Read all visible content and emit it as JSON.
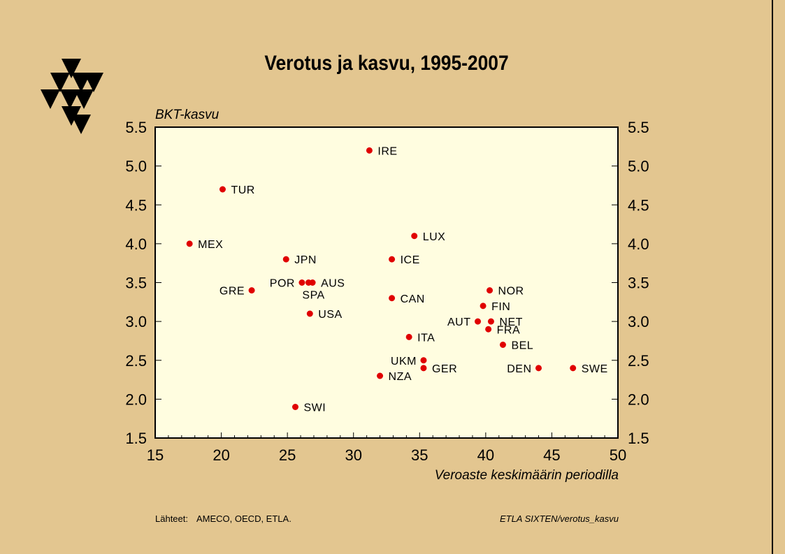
{
  "title": "Verotus ja kasvu, 1995-2007",
  "footer": {
    "sources_label": "Lähteet:",
    "sources": "AMECO, OECD, ETLA.",
    "reference": "ETLA  SIXTEN/verotus_kasvu"
  },
  "colors": {
    "background": "#e3c690",
    "plot_area": "#fffde0",
    "marker": "#e00000"
  },
  "chart_data": {
    "type": "scatter",
    "title": "Verotus ja kasvu, 1995-2007",
    "xlabel": "Veroaste keskimäärin periodilla",
    "ylabel": "BKT-kasvu",
    "xlim": [
      15,
      50
    ],
    "ylim": [
      1.5,
      5.5
    ],
    "x_ticks": [
      15,
      20,
      25,
      30,
      35,
      40,
      45,
      50
    ],
    "y_ticks": [
      1.5,
      2.0,
      2.5,
      3.0,
      3.5,
      4.0,
      4.5,
      5.0,
      5.5
    ],
    "grid": false,
    "points": [
      {
        "label": "IRE",
        "x": 31.2,
        "y": 5.2,
        "pos": "right"
      },
      {
        "label": "TUR",
        "x": 20.1,
        "y": 4.7,
        "pos": "right"
      },
      {
        "label": "MEX",
        "x": 17.6,
        "y": 4.0,
        "pos": "right"
      },
      {
        "label": "LUX",
        "x": 34.6,
        "y": 4.1,
        "pos": "right"
      },
      {
        "label": "JPN",
        "x": 24.9,
        "y": 3.8,
        "pos": "right"
      },
      {
        "label": "ICE",
        "x": 32.9,
        "y": 3.8,
        "pos": "right"
      },
      {
        "label": "POR",
        "x": 26.1,
        "y": 3.5,
        "pos": "left"
      },
      {
        "label": "SPA",
        "x": 26.6,
        "y": 3.5,
        "pos": "below"
      },
      {
        "label": "AUS",
        "x": 26.9,
        "y": 3.5,
        "pos": "right"
      },
      {
        "label": "GRE",
        "x": 22.3,
        "y": 3.4,
        "pos": "left"
      },
      {
        "label": "NOR",
        "x": 40.3,
        "y": 3.4,
        "pos": "right"
      },
      {
        "label": "CAN",
        "x": 32.9,
        "y": 3.3,
        "pos": "right"
      },
      {
        "label": "FIN",
        "x": 39.8,
        "y": 3.2,
        "pos": "right"
      },
      {
        "label": "USA",
        "x": 26.7,
        "y": 3.1,
        "pos": "right"
      },
      {
        "label": "AUT",
        "x": 39.4,
        "y": 3.0,
        "pos": "left"
      },
      {
        "label": "NET",
        "x": 40.4,
        "y": 3.0,
        "pos": "right"
      },
      {
        "label": "FRA",
        "x": 40.2,
        "y": 2.9,
        "pos": "right"
      },
      {
        "label": "ITA",
        "x": 34.2,
        "y": 2.8,
        "pos": "right"
      },
      {
        "label": "BEL",
        "x": 41.3,
        "y": 2.7,
        "pos": "right"
      },
      {
        "label": "UKM",
        "x": 35.3,
        "y": 2.5,
        "pos": "left"
      },
      {
        "label": "GER",
        "x": 35.3,
        "y": 2.4,
        "pos": "right"
      },
      {
        "label": "DEN",
        "x": 44.0,
        "y": 2.4,
        "pos": "left"
      },
      {
        "label": "SWE",
        "x": 46.6,
        "y": 2.4,
        "pos": "right"
      },
      {
        "label": "NZA",
        "x": 32.0,
        "y": 2.3,
        "pos": "right"
      },
      {
        "label": "SWI",
        "x": 25.6,
        "y": 1.9,
        "pos": "right"
      }
    ]
  }
}
